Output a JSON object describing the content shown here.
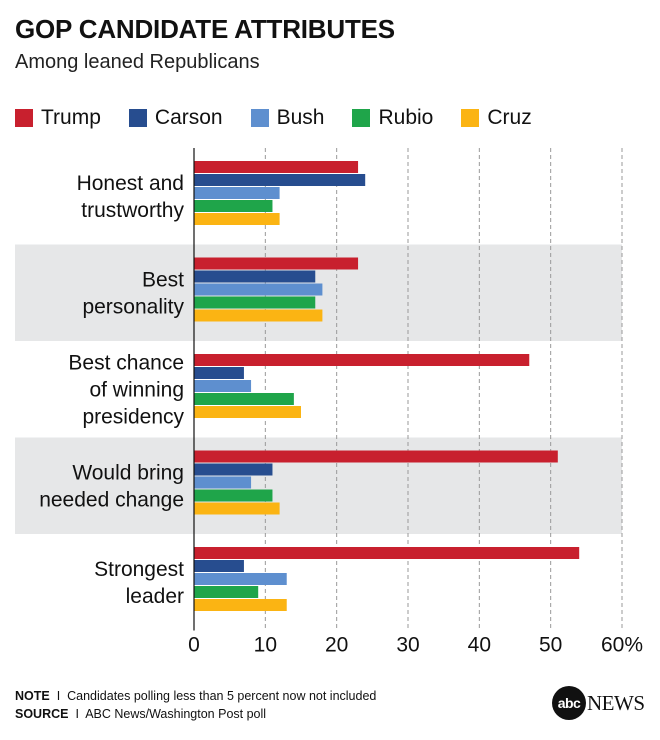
{
  "title": "GOP CANDIDATE ATTRIBUTES",
  "subtitle": "Among leaned Republicans",
  "colors": {
    "Trump": "#c8202e",
    "Carson": "#274d8f",
    "Bush": "#5e8fcf",
    "Rubio": "#1fa54a",
    "Cruz": "#fbb413",
    "band": "#e6e7e8",
    "grid": "#9a9a9a"
  },
  "chart_data": {
    "type": "bar",
    "orientation": "horizontal",
    "categories": [
      [
        "Honest and",
        "trustworthy"
      ],
      [
        "Best",
        "personality"
      ],
      [
        "Best chance",
        "of winning",
        "presidency"
      ],
      [
        "Would bring",
        "needed change"
      ],
      [
        "Strongest",
        "leader"
      ]
    ],
    "series": [
      {
        "name": "Trump",
        "values": [
          23,
          23,
          47,
          51,
          54
        ]
      },
      {
        "name": "Carson",
        "values": [
          24,
          17,
          7,
          11,
          7
        ]
      },
      {
        "name": "Bush",
        "values": [
          12,
          18,
          8,
          8,
          13
        ]
      },
      {
        "name": "Rubio",
        "values": [
          11,
          17,
          14,
          11,
          9
        ]
      },
      {
        "name": "Cruz",
        "values": [
          12,
          18,
          15,
          12,
          13
        ]
      }
    ],
    "xlim": [
      0,
      60
    ],
    "xticks": [
      "0",
      "10",
      "20",
      "30",
      "40",
      "50",
      "60%"
    ],
    "grid": "vertical dashed",
    "legend": "top"
  },
  "footer": {
    "note_label": "NOTE",
    "note_sep": "I",
    "note_text": "Candidates polling less than 5 percent now not included",
    "source_label": "SOURCE",
    "source_sep": "I",
    "source_text": "ABC News/Washington Post poll"
  },
  "logo": {
    "mark": "abc",
    "word": "NEWS"
  }
}
